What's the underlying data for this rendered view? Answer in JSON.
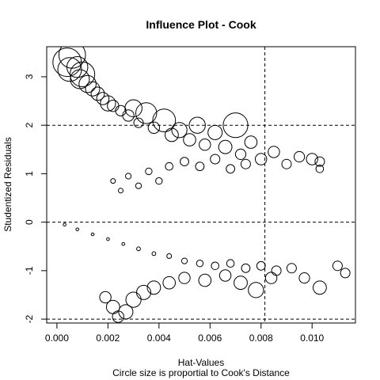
{
  "chart_data": {
    "type": "scatter",
    "title": "Influence Plot - Cook",
    "xlabel": "Hat-Values",
    "subtitle": "Circle size is proportial to Cook's Distance",
    "ylabel": "Studentized Residuals",
    "xlim": [
      -0.0004,
      0.0117
    ],
    "ylim": [
      -2.08,
      3.62
    ],
    "x_ticks": [
      0.0,
      0.002,
      0.004,
      0.006,
      0.008,
      0.01
    ],
    "x_tick_labels": [
      "0.000",
      "0.002",
      "0.004",
      "0.006",
      "0.008",
      "0.010"
    ],
    "y_ticks": [
      -2,
      -1,
      0,
      1,
      2,
      3
    ],
    "y_tick_labels": [
      "-2",
      "-1",
      "0",
      "1",
      "2",
      "3"
    ],
    "reference_lines": {
      "horizontal": [
        -2,
        0,
        2
      ],
      "vertical": [
        0.00815
      ],
      "style": "dashed"
    },
    "marker": "open-circle",
    "grid": false,
    "series": [
      {
        "points": [
          [
            0.0004,
            3.3,
            0.3
          ],
          [
            0.0006,
            3.45,
            0.28
          ],
          [
            0.0005,
            3.15,
            0.25
          ],
          [
            0.0008,
            3.2,
            0.22
          ],
          [
            0.001,
            3.05,
            0.26
          ],
          [
            0.0009,
            2.95,
            0.2
          ],
          [
            0.0012,
            2.85,
            0.18
          ],
          [
            0.0014,
            2.75,
            0.15
          ],
          [
            0.0016,
            2.65,
            0.14
          ],
          [
            0.0018,
            2.55,
            0.13
          ],
          [
            0.002,
            2.45,
            0.16
          ],
          [
            0.0022,
            2.4,
            0.12
          ],
          [
            0.0025,
            2.3,
            0.11
          ],
          [
            0.0028,
            2.2,
            0.12
          ],
          [
            0.003,
            2.35,
            0.18
          ],
          [
            0.0032,
            2.05,
            0.1
          ],
          [
            0.0035,
            2.25,
            0.22
          ],
          [
            0.0038,
            1.95,
            0.12
          ],
          [
            0.0042,
            2.1,
            0.24
          ],
          [
            0.0045,
            1.8,
            0.14
          ],
          [
            0.0048,
            1.9,
            0.16
          ],
          [
            0.0052,
            1.7,
            0.13
          ],
          [
            0.0055,
            2.0,
            0.17
          ],
          [
            0.0058,
            1.6,
            0.12
          ],
          [
            0.0062,
            1.85,
            0.15
          ],
          [
            0.0066,
            1.55,
            0.14
          ],
          [
            0.007,
            2.0,
            0.26
          ],
          [
            0.0072,
            1.4,
            0.11
          ],
          [
            0.0076,
            1.65,
            0.13
          ],
          [
            0.008,
            1.3,
            0.12
          ],
          [
            0.0085,
            1.45,
            0.12
          ],
          [
            0.009,
            1.2,
            0.1
          ],
          [
            0.0095,
            1.35,
            0.11
          ],
          [
            0.01,
            1.3,
            0.12
          ],
          [
            0.0103,
            1.25,
            0.1
          ],
          [
            0.0103,
            1.1,
            0.08
          ],
          [
            0.0022,
            0.85,
            0.05
          ],
          [
            0.0025,
            0.65,
            0.05
          ],
          [
            0.0028,
            0.95,
            0.06
          ],
          [
            0.0032,
            0.75,
            0.06
          ],
          [
            0.0036,
            1.05,
            0.07
          ],
          [
            0.004,
            0.85,
            0.07
          ],
          [
            0.0044,
            1.15,
            0.08
          ],
          [
            0.005,
            1.25,
            0.09
          ],
          [
            0.0056,
            1.15,
            0.09
          ],
          [
            0.0062,
            1.3,
            0.1
          ],
          [
            0.0068,
            1.1,
            0.09
          ],
          [
            0.0074,
            1.2,
            0.1
          ],
          [
            0.0003,
            -0.05,
            0.02
          ],
          [
            0.0008,
            -0.15,
            0.02
          ],
          [
            0.0014,
            -0.25,
            0.03
          ],
          [
            0.002,
            -0.35,
            0.03
          ],
          [
            0.0026,
            -0.45,
            0.03
          ],
          [
            0.0032,
            -0.55,
            0.04
          ],
          [
            0.0038,
            -0.65,
            0.04
          ],
          [
            0.0044,
            -0.7,
            0.05
          ],
          [
            0.005,
            -0.8,
            0.06
          ],
          [
            0.0056,
            -0.85,
            0.07
          ],
          [
            0.0062,
            -0.9,
            0.08
          ],
          [
            0.0068,
            -0.85,
            0.08
          ],
          [
            0.0074,
            -0.95,
            0.09
          ],
          [
            0.008,
            -0.9,
            0.09
          ],
          [
            0.0086,
            -1.0,
            0.1
          ],
          [
            0.0092,
            -0.95,
            0.1
          ],
          [
            0.0097,
            -1.15,
            0.11
          ],
          [
            0.0103,
            -1.35,
            0.14
          ],
          [
            0.011,
            -0.9,
            0.1
          ],
          [
            0.0113,
            -1.05,
            0.1
          ],
          [
            0.0019,
            -1.55,
            0.12
          ],
          [
            0.0022,
            -1.75,
            0.14
          ],
          [
            0.0024,
            -1.95,
            0.12
          ],
          [
            0.0027,
            -1.85,
            0.15
          ],
          [
            0.003,
            -1.6,
            0.16
          ],
          [
            0.0034,
            -1.45,
            0.15
          ],
          [
            0.0038,
            -1.35,
            0.14
          ],
          [
            0.0044,
            -1.25,
            0.13
          ],
          [
            0.005,
            -1.15,
            0.12
          ],
          [
            0.0058,
            -1.2,
            0.13
          ],
          [
            0.0066,
            -1.1,
            0.12
          ],
          [
            0.0072,
            -1.25,
            0.14
          ],
          [
            0.0078,
            -1.4,
            0.16
          ],
          [
            0.0084,
            -1.15,
            0.12
          ]
        ]
      }
    ]
  }
}
